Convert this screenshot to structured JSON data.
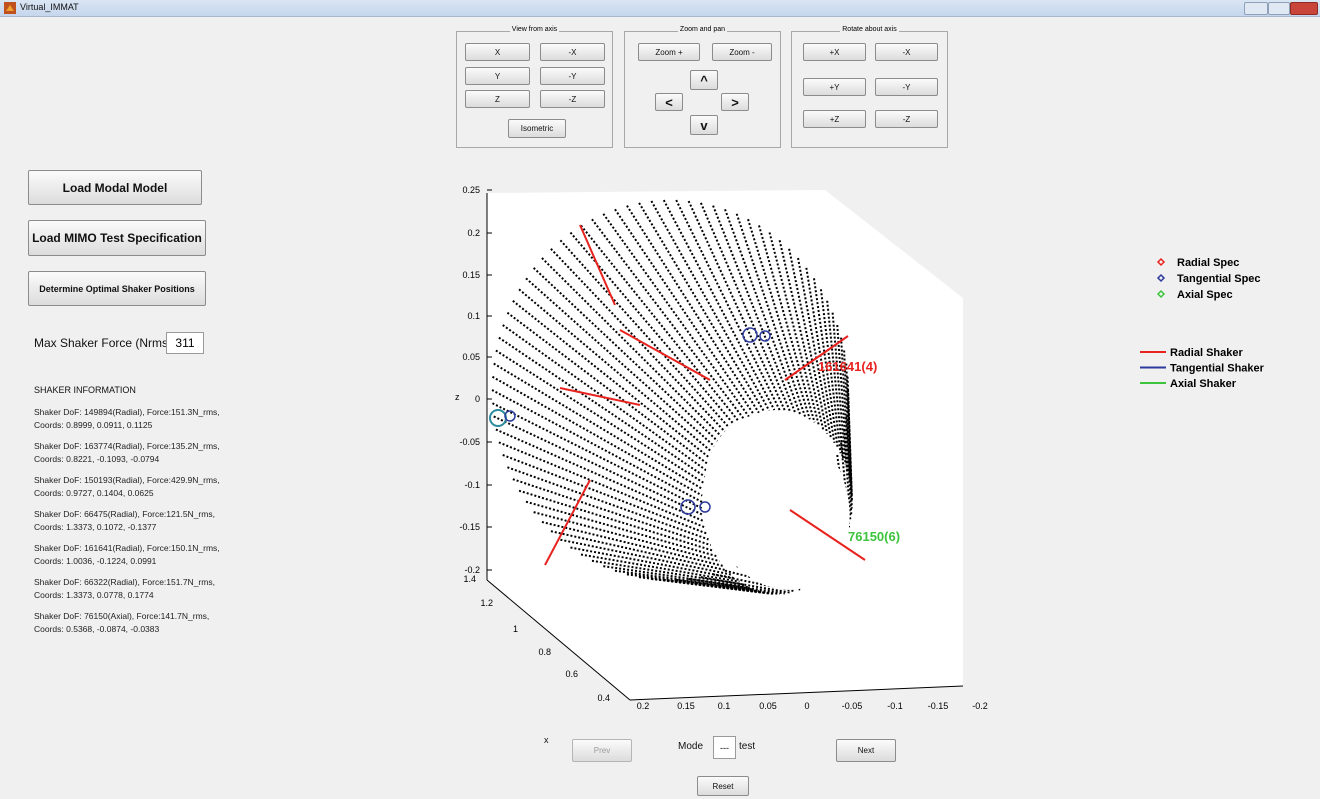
{
  "window": {
    "title": "Virtual_IMMAT"
  },
  "view_panel": {
    "title": "View from axis",
    "buttons": [
      "X",
      "-X",
      "Y",
      "-Y",
      "Z",
      "-Z",
      "Isometric"
    ]
  },
  "zoom_panel": {
    "title": "Zoom and pan",
    "buttons": [
      "Zoom +",
      "Zoom -",
      "^",
      "<",
      ">",
      "v"
    ]
  },
  "rotate_panel": {
    "title": "Rotate about axis",
    "buttons": [
      "+X",
      "-X",
      "+Y",
      "-Y",
      "+Z",
      "-Z"
    ]
  },
  "left": {
    "buttons": [
      "Load Modal Model",
      "Load MIMO Test Specification",
      "Determine Optimal Shaker Positions"
    ],
    "max_force_label": "Max Shaker Force (Nrms)",
    "max_force_value": "311",
    "info_title": "SHAKER INFORMATION",
    "shakers": [
      [
        "Shaker DoF: 149894(Radial), Force:151.3N_rms,",
        "Coords: 0.8999, 0.0911, 0.1125"
      ],
      [
        "Shaker DoF: 163774(Radial), Force:135.2N_rms,",
        "Coords: 0.8221, -0.1093, -0.0794"
      ],
      [
        "Shaker DoF: 150193(Radial), Force:429.9N_rms,",
        "Coords: 0.9727, 0.1404, 0.0625"
      ],
      [
        "Shaker DoF: 66475(Radial), Force:121.5N_rms,",
        "Coords: 1.3373, 0.1072, -0.1377"
      ],
      [
        "Shaker DoF: 161641(Radial), Force:150.1N_rms,",
        "Coords: 1.0036, -0.1224, 0.0991"
      ],
      [
        "Shaker DoF: 66322(Radial), Force:151.7N_rms,",
        "Coords: 1.3373, 0.0778, 0.1774"
      ],
      [
        "Shaker DoF: 76150(Axial), Force:141.7N_rms,",
        "Coords: 0.5368, -0.0874, -0.0383"
      ]
    ]
  },
  "plot": {
    "z_label": "z",
    "x_label": "x",
    "z_ticks": [
      "0.25",
      "0.2",
      "0.15",
      "0.1",
      "0.05",
      "0",
      "-0.05",
      "-0.1",
      "-0.15",
      "-0.2"
    ],
    "y_ticks": [
      "1.4",
      "1.2",
      "1",
      "0.8",
      "0.6",
      "0.4"
    ],
    "x_ticks": [
      "0.2",
      "0.15",
      "0.1",
      "0.05",
      "0",
      "-0.05",
      "-0.1",
      "-0.15",
      "-0.2"
    ],
    "annotations": [
      {
        "text": "161641(4)",
        "color": "#e8231f"
      },
      {
        "text": "76150(6)",
        "color": "#3cc43c"
      }
    ]
  },
  "legend": {
    "spec": [
      {
        "name": "Radial Spec",
        "color": "#e8231f"
      },
      {
        "name": "Tangential Spec",
        "color": "#2b3a9c"
      },
      {
        "name": "Axial Spec",
        "color": "#3cc43c"
      }
    ],
    "shaker": [
      {
        "name": "Radial Shaker",
        "color": "#e8231f"
      },
      {
        "name": "Tangential Shaker",
        "color": "#2b3a9c"
      },
      {
        "name": "Axial Shaker",
        "color": "#3cc43c"
      }
    ]
  },
  "bottom": {
    "prev": "Prev",
    "mode_label": "Mode",
    "mode_value": "---",
    "mode_suffix": "test",
    "next": "Next",
    "reset": "Reset"
  }
}
